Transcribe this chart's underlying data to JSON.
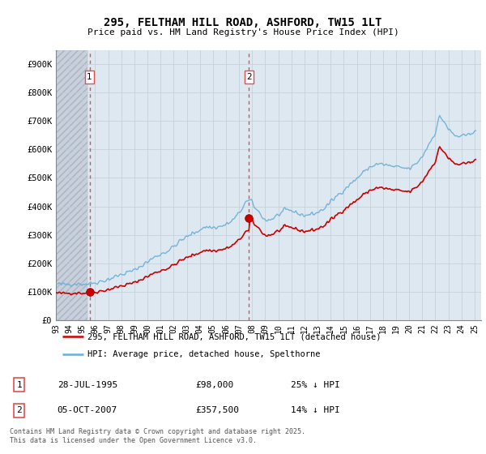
{
  "title_line1": "295, FELTHAM HILL ROAD, ASHFORD, TW15 1LT",
  "title_line2": "Price paid vs. HM Land Registry's House Price Index (HPI)",
  "legend_line1": "295, FELTHAM HILL ROAD, ASHFORD, TW15 1LT (detached house)",
  "legend_line2": "HPI: Average price, detached house, Spelthorne",
  "footer": "Contains HM Land Registry data © Crown copyright and database right 2025.\nThis data is licensed under the Open Government Licence v3.0.",
  "transaction1_date": "28-JUL-1995",
  "transaction1_price": "£98,000",
  "transaction1_hpi": "25% ↓ HPI",
  "transaction2_date": "05-OCT-2007",
  "transaction2_price": "£357,500",
  "transaction2_hpi": "14% ↓ HPI",
  "transaction1_year": 1995.57,
  "transaction1_value": 98000,
  "transaction2_year": 2007.76,
  "transaction2_value": 357500,
  "hpi_color": "#6baed6",
  "price_color": "#cc0000",
  "vline_color": "#e05050",
  "bg_color": "#dde8f0",
  "grid_color": "#c8d4e0",
  "hatch_color": "#c8d0dc",
  "xlim_left": 1993.0,
  "xlim_right": 2025.5,
  "ylim_bottom": 0,
  "ylim_top": 950000,
  "yticks": [
    0,
    100000,
    200000,
    300000,
    400000,
    500000,
    600000,
    700000,
    800000,
    900000
  ],
  "ytick_labels": [
    "£0",
    "£100K",
    "£200K",
    "£300K",
    "£400K",
    "£500K",
    "£600K",
    "£700K",
    "£800K",
    "£900K"
  ]
}
